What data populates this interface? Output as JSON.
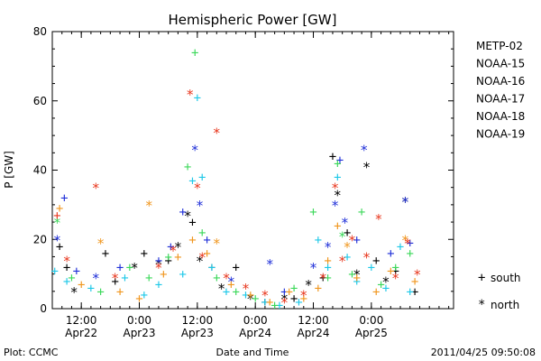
{
  "chart_data": {
    "type": "scatter",
    "title": "Hemispheric Power [GW]",
    "xlabel": "Date and Time",
    "ylabel": "P [GW]",
    "ylim": [
      0,
      80
    ],
    "y_ticks": [
      0,
      20,
      40,
      60,
      80
    ],
    "x_range": [
      "2011-04-22T06:00",
      "2011-04-25T17:00"
    ],
    "x_ticks": [
      {
        "time": "2011-04-22T12:00",
        "label1": "12:00",
        "label2": "Apr22"
      },
      {
        "time": "2011-04-23T00:00",
        "label1": "0:00",
        "label2": "Apr23"
      },
      {
        "time": "2011-04-23T12:00",
        "label1": "12:00",
        "label2": "Apr23"
      },
      {
        "time": "2011-04-24T00:00",
        "label1": "0:00",
        "label2": "Apr24"
      },
      {
        "time": "2011-04-24T12:00",
        "label1": "12:00",
        "label2": "Apr24"
      },
      {
        "time": "2011-04-25T00:00",
        "label1": "0:00",
        "label2": "Apr25"
      }
    ],
    "legend_position": "right",
    "marker_legend": [
      {
        "symbol": "+",
        "label": "south"
      },
      {
        "symbol": "*",
        "label": "north"
      }
    ],
    "series": [
      {
        "name": "METP-02",
        "color": "#000000",
        "points": [
          [
            "2011-04-22T07:30",
            18,
            "+"
          ],
          [
            "2011-04-22T09:00",
            12,
            "+"
          ],
          [
            "2011-04-22T10:30",
            5,
            "*"
          ],
          [
            "2011-04-22T17:00",
            16,
            "+"
          ],
          [
            "2011-04-22T19:00",
            8,
            "+"
          ],
          [
            "2011-04-22T23:00",
            12,
            "*"
          ],
          [
            "2011-04-23T01:00",
            16,
            "+"
          ],
          [
            "2011-04-23T04:00",
            13,
            "*"
          ],
          [
            "2011-04-23T06:00",
            14,
            "+"
          ],
          [
            "2011-04-23T08:00",
            18,
            "*"
          ],
          [
            "2011-04-23T10:00",
            27,
            "*"
          ],
          [
            "2011-04-23T11:00",
            25,
            "+"
          ],
          [
            "2011-04-23T12:30",
            14,
            "*"
          ],
          [
            "2011-04-23T15:00",
            12,
            "+"
          ],
          [
            "2011-04-23T17:00",
            6,
            "*"
          ],
          [
            "2011-04-23T20:00",
            12,
            "+"
          ],
          [
            "2011-04-23T23:00",
            3,
            "*"
          ],
          [
            "2011-04-24T02:00",
            2,
            "+"
          ],
          [
            "2011-04-24T06:00",
            3,
            "*"
          ],
          [
            "2011-04-24T08:00",
            3,
            "+"
          ],
          [
            "2011-04-24T11:00",
            7,
            "*"
          ],
          [
            "2011-04-24T14:00",
            9,
            "+"
          ],
          [
            "2011-04-24T16:00",
            44,
            "+"
          ],
          [
            "2011-04-24T17:00",
            33,
            "*"
          ],
          [
            "2011-04-24T19:00",
            22,
            "+"
          ],
          [
            "2011-04-24T21:00",
            10,
            "*"
          ],
          [
            "2011-04-24T23:00",
            41,
            "*"
          ],
          [
            "2011-04-25T01:00",
            14,
            "+"
          ],
          [
            "2011-04-25T03:00",
            8,
            "*"
          ],
          [
            "2011-04-25T05:00",
            11,
            "+"
          ],
          [
            "2011-04-25T07:00",
            31,
            "*"
          ],
          [
            "2011-04-25T09:00",
            5,
            "+"
          ]
        ]
      },
      {
        "name": "NOAA-15",
        "color": "#1f2fd8",
        "points": [
          [
            "2011-04-22T07:00",
            20,
            "*"
          ],
          [
            "2011-04-22T08:30",
            32,
            "+"
          ],
          [
            "2011-04-22T11:00",
            11,
            "+"
          ],
          [
            "2011-04-22T15:00",
            9,
            "*"
          ],
          [
            "2011-04-22T20:00",
            12,
            "+"
          ],
          [
            "2011-04-23T04:00",
            14,
            "+"
          ],
          [
            "2011-04-23T06:30",
            18,
            "+"
          ],
          [
            "2011-04-23T09:00",
            28,
            "+"
          ],
          [
            "2011-04-23T11:30",
            46,
            "*"
          ],
          [
            "2011-04-23T12:30",
            30,
            "*"
          ],
          [
            "2011-04-23T14:00",
            20,
            "+"
          ],
          [
            "2011-04-23T19:00",
            8,
            "*"
          ],
          [
            "2011-04-24T03:00",
            13,
            "*"
          ],
          [
            "2011-04-24T06:00",
            5,
            "+"
          ],
          [
            "2011-04-24T12:00",
            12,
            "*"
          ],
          [
            "2011-04-24T15:00",
            18,
            "*"
          ],
          [
            "2011-04-24T16:30",
            30,
            "*"
          ],
          [
            "2011-04-24T17:30",
            43,
            "+"
          ],
          [
            "2011-04-24T18:30",
            25,
            "*"
          ],
          [
            "2011-04-24T21:00",
            20,
            "+"
          ],
          [
            "2011-04-24T22:30",
            46,
            "*"
          ],
          [
            "2011-04-25T04:00",
            16,
            "+"
          ],
          [
            "2011-04-25T07:00",
            31,
            "*"
          ],
          [
            "2011-04-25T08:00",
            19,
            "+"
          ]
        ]
      },
      {
        "name": "NOAA-16",
        "color": "#1ec8e8",
        "points": [
          [
            "2011-04-22T06:30",
            11,
            "+"
          ],
          [
            "2011-04-22T09:00",
            8,
            "+"
          ],
          [
            "2011-04-22T14:00",
            6,
            "+"
          ],
          [
            "2011-04-22T21:00",
            9,
            "+"
          ],
          [
            "2011-04-23T01:00",
            4,
            "+"
          ],
          [
            "2011-04-23T04:00",
            7,
            "+"
          ],
          [
            "2011-04-23T09:00",
            10,
            "+"
          ],
          [
            "2011-04-23T11:00",
            37,
            "+"
          ],
          [
            "2011-04-23T12:00",
            61,
            "+"
          ],
          [
            "2011-04-23T13:00",
            38,
            "+"
          ],
          [
            "2011-04-23T15:00",
            12,
            "+"
          ],
          [
            "2011-04-23T18:00",
            5,
            "+"
          ],
          [
            "2011-04-23T22:00",
            4,
            "+"
          ],
          [
            "2011-04-24T02:00",
            2,
            "+"
          ],
          [
            "2011-04-24T05:00",
            1,
            "+"
          ],
          [
            "2011-04-24T09:00",
            2,
            "+"
          ],
          [
            "2011-04-24T13:00",
            20,
            "+"
          ],
          [
            "2011-04-24T15:00",
            12,
            "+"
          ],
          [
            "2011-04-24T17:00",
            38,
            "+"
          ],
          [
            "2011-04-24T19:00",
            15,
            "+"
          ],
          [
            "2011-04-24T21:00",
            8,
            "+"
          ],
          [
            "2011-04-25T00:00",
            12,
            "+"
          ],
          [
            "2011-04-25T03:00",
            6,
            "+"
          ],
          [
            "2011-04-25T06:00",
            18,
            "+"
          ],
          [
            "2011-04-25T08:00",
            5,
            "+"
          ]
        ]
      },
      {
        "name": "NOAA-17",
        "color": "#3cd85a",
        "points": [
          [
            "2011-04-22T07:00",
            25,
            "*"
          ],
          [
            "2011-04-22T10:00",
            9,
            "+"
          ],
          [
            "2011-04-22T16:00",
            5,
            "+"
          ],
          [
            "2011-04-22T22:00",
            12,
            "+"
          ],
          [
            "2011-04-23T02:00",
            9,
            "+"
          ],
          [
            "2011-04-23T06:00",
            15,
            "+"
          ],
          [
            "2011-04-23T10:00",
            41,
            "+"
          ],
          [
            "2011-04-23T11:30",
            74,
            "+"
          ],
          [
            "2011-04-23T13:00",
            22,
            "+"
          ],
          [
            "2011-04-23T16:00",
            9,
            "+"
          ],
          [
            "2011-04-23T20:00",
            5,
            "+"
          ],
          [
            "2011-04-24T00:00",
            3,
            "+"
          ],
          [
            "2011-04-24T04:00",
            1,
            "+"
          ],
          [
            "2011-04-24T08:00",
            6,
            "+"
          ],
          [
            "2011-04-24T12:00",
            28,
            "+"
          ],
          [
            "2011-04-24T15:00",
            9,
            "+"
          ],
          [
            "2011-04-24T17:00",
            42,
            "+"
          ],
          [
            "2011-04-24T18:00",
            21,
            "*"
          ],
          [
            "2011-04-24T20:00",
            10,
            "+"
          ],
          [
            "2011-04-24T22:00",
            28,
            "+"
          ],
          [
            "2011-04-25T02:00",
            7,
            "+"
          ],
          [
            "2011-04-25T05:00",
            12,
            "+"
          ],
          [
            "2011-04-25T08:00",
            16,
            "+"
          ]
        ]
      },
      {
        "name": "NOAA-18",
        "color": "#f0961e",
        "points": [
          [
            "2011-04-22T07:30",
            29,
            "+"
          ],
          [
            "2011-04-22T12:00",
            7,
            "+"
          ],
          [
            "2011-04-22T16:00",
            19,
            "*"
          ],
          [
            "2011-04-22T20:00",
            5,
            "+"
          ],
          [
            "2011-04-23T00:00",
            3,
            "+"
          ],
          [
            "2011-04-23T02:00",
            30,
            "*"
          ],
          [
            "2011-04-23T05:00",
            10,
            "+"
          ],
          [
            "2011-04-23T08:00",
            15,
            "+"
          ],
          [
            "2011-04-23T11:00",
            20,
            "+"
          ],
          [
            "2011-04-23T14:00",
            16,
            "+"
          ],
          [
            "2011-04-23T16:00",
            19,
            "*"
          ],
          [
            "2011-04-23T19:00",
            7,
            "+"
          ],
          [
            "2011-04-23T23:00",
            4,
            "+"
          ],
          [
            "2011-04-24T03:00",
            2,
            "+"
          ],
          [
            "2011-04-24T07:00",
            5,
            "+"
          ],
          [
            "2011-04-24T10:00",
            3,
            "+"
          ],
          [
            "2011-04-24T13:00",
            6,
            "+"
          ],
          [
            "2011-04-24T15:00",
            14,
            "+"
          ],
          [
            "2011-04-24T17:00",
            24,
            "+"
          ],
          [
            "2011-04-24T19:00",
            18,
            "*"
          ],
          [
            "2011-04-24T21:00",
            9,
            "+"
          ],
          [
            "2011-04-25T01:00",
            5,
            "+"
          ],
          [
            "2011-04-25T04:00",
            11,
            "+"
          ],
          [
            "2011-04-25T07:00",
            20,
            "*"
          ],
          [
            "2011-04-25T09:00",
            8,
            "+"
          ]
        ]
      },
      {
        "name": "NOAA-19",
        "color": "#e8371e",
        "points": [
          [
            "2011-04-22T07:00",
            27,
            "+"
          ],
          [
            "2011-04-22T09:00",
            14,
            "*"
          ],
          [
            "2011-04-22T15:00",
            35,
            "*"
          ],
          [
            "2011-04-22T19:00",
            9,
            "*"
          ],
          [
            "2011-04-23T04:00",
            12,
            "*"
          ],
          [
            "2011-04-23T07:00",
            17,
            "*"
          ],
          [
            "2011-04-23T10:30",
            62,
            "*"
          ],
          [
            "2011-04-23T12:00",
            35,
            "*"
          ],
          [
            "2011-04-23T13:00",
            15,
            "*"
          ],
          [
            "2011-04-23T16:00",
            51,
            "*"
          ],
          [
            "2011-04-23T18:00",
            9,
            "*"
          ],
          [
            "2011-04-23T22:00",
            6,
            "*"
          ],
          [
            "2011-04-24T02:00",
            4,
            "*"
          ],
          [
            "2011-04-24T06:00",
            2,
            "*"
          ],
          [
            "2011-04-24T10:00",
            4,
            "*"
          ],
          [
            "2011-04-24T14:00",
            9,
            "*"
          ],
          [
            "2011-04-24T16:30",
            35,
            "*"
          ],
          [
            "2011-04-24T18:00",
            14,
            "*"
          ],
          [
            "2011-04-24T20:00",
            20,
            "*"
          ],
          [
            "2011-04-24T23:00",
            15,
            "*"
          ],
          [
            "2011-04-25T01:30",
            26,
            "*"
          ],
          [
            "2011-04-25T05:00",
            9,
            "*"
          ],
          [
            "2011-04-25T07:30",
            19,
            "*"
          ],
          [
            "2011-04-25T09:30",
            10,
            "*"
          ]
        ]
      }
    ]
  },
  "footer": {
    "left": "Plot: CCMC",
    "right": "2011/04/25 09:50:08"
  }
}
